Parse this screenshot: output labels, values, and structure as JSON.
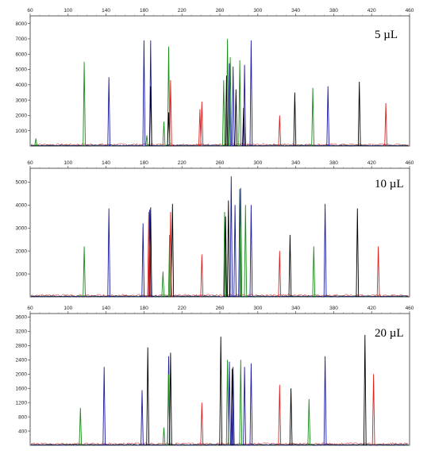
{
  "chart_data": [
    {
      "type": "line",
      "title": "5 µL",
      "xlim": [
        60,
        460
      ],
      "ylim": [
        0,
        8500
      ],
      "x_ticks": [
        "60",
        "100",
        "140",
        "180",
        "220",
        "260",
        "300",
        "340",
        "380",
        "420",
        "460"
      ],
      "y_ticks": [
        "1000",
        "2000",
        "3000",
        "4000",
        "5000",
        "6000",
        "7000",
        "8000"
      ],
      "colors": {
        "blue": "#1a1aa0",
        "green": "#1b8a1b",
        "black": "#000000",
        "red": "#e02020"
      },
      "series": [
        {
          "color": "blue",
          "peaks": [
            [
              143,
              4500
            ],
            [
              180,
              6900
            ],
            [
              187,
              6900
            ],
            [
              270,
              5400
            ],
            [
              274,
              5200
            ],
            [
              286,
              5300
            ],
            [
              293,
              6900
            ],
            [
              374,
              3900
            ]
          ]
        },
        {
          "color": "green",
          "peaks": [
            [
              66,
              500
            ],
            [
              117,
              5500
            ],
            [
              183,
              700
            ],
            [
              201,
              1600
            ],
            [
              206,
              6500
            ],
            [
              264,
              4300
            ],
            [
              268,
              7000
            ],
            [
              271,
              5800
            ],
            [
              281,
              5600
            ],
            [
              358,
              3800
            ]
          ]
        },
        {
          "color": "black",
          "peaks": [
            [
              187,
              3900
            ],
            [
              206,
              2200
            ],
            [
              267,
              4600
            ],
            [
              277,
              3700
            ],
            [
              285,
              2500
            ],
            [
              339,
              3500
            ],
            [
              407,
              4200
            ]
          ]
        },
        {
          "color": "red",
          "peaks": [
            [
              208,
              4300
            ],
            [
              239,
              2400
            ],
            [
              241,
              2900
            ],
            [
              323,
              2000
            ],
            [
              435,
              2800
            ]
          ]
        }
      ]
    },
    {
      "type": "line",
      "title": "10 µL",
      "xlim": [
        60,
        460
      ],
      "ylim": [
        0,
        5600
      ],
      "x_ticks": [
        "60",
        "100",
        "140",
        "180",
        "220",
        "260",
        "300",
        "340",
        "380",
        "420",
        "460"
      ],
      "y_ticks": [
        "1000",
        "2000",
        "3000",
        "4000",
        "5000"
      ],
      "colors": {
        "blue": "#1a1aa0",
        "green": "#1b8a1b",
        "black": "#000000",
        "red": "#e02020"
      },
      "series": [
        {
          "color": "blue",
          "peaks": [
            [
              143,
              3850
            ],
            [
              179,
              3200
            ],
            [
              186,
              3800
            ],
            [
              272,
              5250
            ],
            [
              276,
              4000
            ],
            [
              281,
              4700
            ],
            [
              293,
              4000
            ],
            [
              371,
              4050
            ]
          ]
        },
        {
          "color": "green",
          "peaks": [
            [
              117,
              2200
            ],
            [
              200,
              1100
            ],
            [
              207,
              2700
            ],
            [
              265,
              3700
            ],
            [
              282,
              4750
            ],
            [
              287,
              4000
            ],
            [
              359,
              2200
            ]
          ]
        },
        {
          "color": "black",
          "peaks": [
            [
              187,
              3900
            ],
            [
              210,
              4050
            ],
            [
              266,
              3500
            ],
            [
              269,
              4200
            ],
            [
              334,
              2700
            ],
            [
              405,
              3850
            ]
          ]
        },
        {
          "color": "red",
          "peaks": [
            [
              185,
              3700
            ],
            [
              208,
              3700
            ],
            [
              241,
              1850
            ],
            [
              323,
              2000
            ],
            [
              427,
              2200
            ]
          ]
        }
      ]
    },
    {
      "type": "line",
      "title": "20 µL",
      "xlim": [
        60,
        460
      ],
      "ylim": [
        0,
        3700
      ],
      "x_ticks": [
        "60",
        "100",
        "140",
        "180",
        "220",
        "260",
        "300",
        "340",
        "380",
        "420",
        "460"
      ],
      "y_ticks": [
        "400",
        "800",
        "1200",
        "1600",
        "2000",
        "2400",
        "2800",
        "3200",
        "3600"
      ],
      "colors": {
        "blue": "#1a1aa0",
        "green": "#1b8a1b",
        "black": "#000000",
        "red": "#e02020"
      },
      "series": [
        {
          "color": "blue",
          "peaks": [
            [
              138,
              2200
            ],
            [
              178,
              1550
            ],
            [
              206,
              2500
            ],
            [
              270,
              2350
            ],
            [
              274,
              2200
            ],
            [
              286,
              2200
            ],
            [
              293,
              2300
            ],
            [
              371,
              2500
            ]
          ]
        },
        {
          "color": "green",
          "peaks": [
            [
              113,
              1050
            ],
            [
              201,
              500
            ],
            [
              206,
              2000
            ],
            [
              268,
              2400
            ],
            [
              282,
              2400
            ],
            [
              354,
              1300
            ]
          ]
        },
        {
          "color": "black",
          "peaks": [
            [
              184,
              2750
            ],
            [
              208,
              2600
            ],
            [
              261,
              3050
            ],
            [
              273,
              2150
            ],
            [
              335,
              1600
            ],
            [
              413,
              3100
            ]
          ]
        },
        {
          "color": "red",
          "peaks": [
            [
              241,
              1200
            ],
            [
              323,
              1700
            ],
            [
              422,
              2000
            ]
          ]
        }
      ]
    }
  ]
}
